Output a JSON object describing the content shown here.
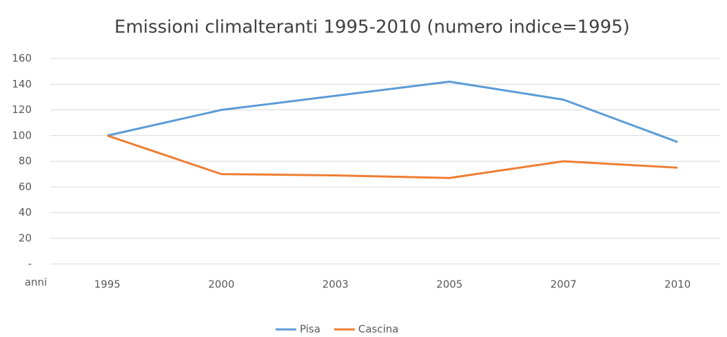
{
  "chart_data": {
    "type": "line",
    "title": "Emissioni climalteranti 1995-2010 (numero indice=1995)",
    "x_label": "anni",
    "categories": [
      "1995",
      "2000",
      "2003",
      "2005",
      "2007",
      "2010"
    ],
    "series": [
      {
        "name": "Pisa",
        "color": "#5b9bd5",
        "values": [
          100,
          120,
          131,
          142,
          128,
          95
        ]
      },
      {
        "name": "Cascina",
        "color": "#ed7d31",
        "values": [
          100,
          70,
          69,
          67,
          80,
          75
        ]
      }
    ],
    "ylim": [
      0,
      160
    ],
    "yticks": [
      {
        "value": 0,
        "label": "-"
      },
      20,
      40,
      60,
      80,
      100,
      120,
      140,
      160
    ],
    "grid": true,
    "legend": "bottom"
  }
}
